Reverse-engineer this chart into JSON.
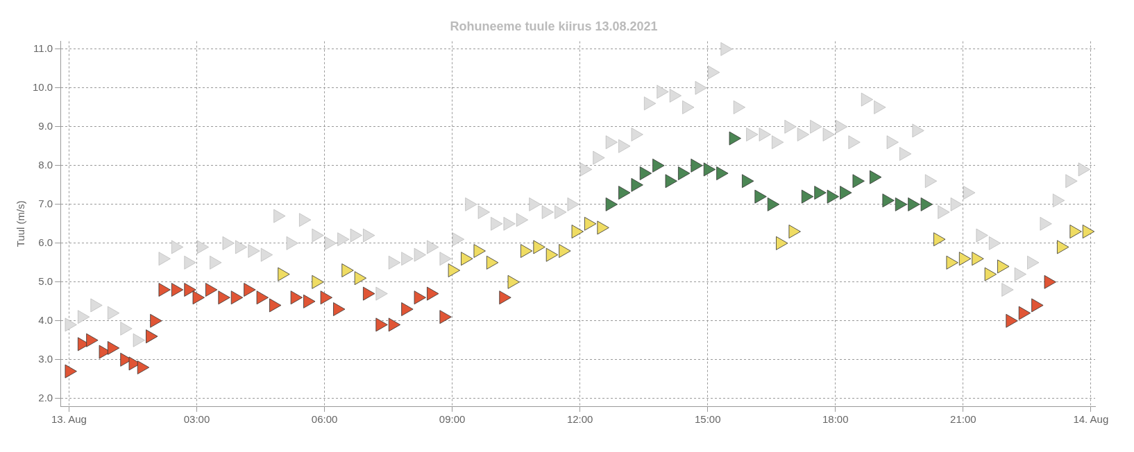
{
  "chart_data": {
    "type": "scatter",
    "title": "Rohuneeme tuule kiirus 13.08.2021",
    "ylabel": "Tuul (m/s)",
    "xlim": [
      -0.2,
      24.1
    ],
    "ylim": [
      1.8,
      11.2
    ],
    "xticks": [
      {
        "value": 0,
        "label": "13. Aug"
      },
      {
        "value": 3,
        "label": "03:00"
      },
      {
        "value": 6,
        "label": "06:00"
      },
      {
        "value": 9,
        "label": "09:00"
      },
      {
        "value": 12,
        "label": "12:00"
      },
      {
        "value": 15,
        "label": "15:00"
      },
      {
        "value": 18,
        "label": "18:00"
      },
      {
        "value": 21,
        "label": "21:00"
      },
      {
        "value": 24,
        "label": "14. Aug"
      }
    ],
    "yticks": [
      {
        "value": 2,
        "label": "2.0"
      },
      {
        "value": 3,
        "label": "3.0"
      },
      {
        "value": 4,
        "label": "4.0"
      },
      {
        "value": 5,
        "label": "5.0"
      },
      {
        "value": 6,
        "label": "6.0"
      },
      {
        "value": 7,
        "label": "7.0"
      },
      {
        "value": 8,
        "label": "8.0"
      },
      {
        "value": 9,
        "label": "9.0"
      },
      {
        "value": 10,
        "label": "10.0"
      },
      {
        "value": 11,
        "label": "11.0"
      }
    ],
    "grid": true,
    "marker": "triangle",
    "series": [
      {
        "color": "#dddddd",
        "x": [
          0.0,
          0.3,
          0.6,
          1.0,
          1.3,
          1.6,
          1.9,
          2.2,
          2.5,
          2.8,
          3.1,
          3.4,
          3.7,
          4.0,
          4.3,
          4.6,
          4.9,
          5.2,
          5.5,
          5.8,
          6.1,
          6.4,
          6.7,
          7.0,
          7.3,
          7.6,
          7.9,
          8.2,
          8.5,
          8.8,
          9.1,
          9.4,
          9.7,
          10.0,
          10.3,
          10.6,
          10.9,
          11.2,
          11.5,
          11.8,
          12.1,
          12.4,
          12.7,
          13.0,
          13.3,
          13.6,
          13.9,
          14.2,
          14.5,
          14.8,
          15.1,
          15.4,
          15.7,
          16.0,
          16.3,
          16.6,
          16.9,
          17.2,
          17.5,
          17.8,
          18.1,
          18.4,
          18.7,
          19.0,
          19.3,
          19.6,
          19.9,
          20.2,
          20.5,
          20.8,
          21.1,
          21.4,
          21.7,
          22.0,
          22.3,
          22.6,
          22.9,
          23.2,
          23.5,
          23.8
        ],
        "values": [
          3.9,
          4.1,
          4.4,
          4.2,
          3.8,
          3.5,
          3.6,
          5.6,
          5.9,
          5.5,
          5.9,
          5.5,
          6.0,
          5.9,
          5.8,
          5.7,
          6.7,
          6.0,
          6.6,
          6.2,
          6.0,
          6.1,
          6.2,
          6.2,
          4.7,
          5.5,
          5.6,
          5.7,
          5.9,
          5.6,
          6.1,
          7.0,
          6.8,
          6.5,
          6.5,
          6.6,
          7.0,
          6.8,
          6.8,
          7.0,
          7.9,
          8.2,
          8.6,
          8.5,
          8.8,
          9.6,
          9.9,
          9.8,
          9.5,
          10.0,
          10.4,
          11.0,
          9.5,
          8.8,
          8.8,
          8.6,
          9.0,
          8.8,
          9.0,
          8.8,
          9.0,
          8.6,
          9.7,
          9.5,
          8.6,
          8.3,
          8.9,
          7.6,
          6.8,
          7.0,
          7.3,
          6.2,
          6.0,
          4.8,
          5.2,
          5.5,
          6.5,
          7.1,
          7.6,
          7.9
        ]
      },
      {
        "x": [
          0.0,
          0.3,
          0.5,
          0.8,
          1.0,
          1.3,
          1.5,
          1.7,
          1.9,
          2.0,
          2.2,
          2.5,
          2.8,
          3.0,
          3.3,
          3.6,
          3.9,
          4.2,
          4.5,
          4.8,
          5.0,
          5.3,
          5.6,
          5.8,
          6.0,
          6.3,
          6.5,
          6.8,
          7.0,
          7.3,
          7.6,
          7.9,
          8.2,
          8.5,
          8.8,
          9.0,
          9.3,
          9.6,
          9.9,
          10.2,
          10.4,
          10.7,
          11.0,
          11.3,
          11.6,
          11.9,
          12.2,
          12.5,
          12.7,
          13.0,
          13.3,
          13.5,
          13.8,
          14.1,
          14.4,
          14.7,
          15.0,
          15.3,
          15.6,
          15.9,
          16.2,
          16.5,
          16.7,
          17.0,
          17.3,
          17.6,
          17.9,
          18.2,
          18.5,
          18.9,
          19.2,
          19.5,
          19.8,
          20.1,
          20.4,
          20.7,
          21.0,
          21.3,
          21.6,
          21.9,
          22.1,
          22.4,
          22.7,
          23.0,
          23.3,
          23.6,
          23.9
        ],
        "values": [
          2.7,
          3.4,
          3.5,
          3.2,
          3.3,
          3.0,
          2.9,
          2.8,
          3.6,
          4.0,
          4.8,
          4.8,
          4.8,
          4.6,
          4.8,
          4.6,
          4.6,
          4.8,
          4.6,
          4.4,
          5.2,
          4.6,
          4.5,
          5.0,
          4.6,
          4.3,
          5.3,
          5.1,
          4.7,
          3.9,
          3.9,
          4.3,
          4.6,
          4.7,
          4.1,
          5.3,
          5.6,
          5.8,
          5.5,
          4.6,
          5.0,
          5.8,
          5.9,
          5.7,
          5.8,
          6.3,
          6.5,
          6.4,
          7.0,
          7.3,
          7.5,
          7.8,
          8.0,
          7.6,
          7.8,
          8.0,
          7.9,
          7.8,
          8.7,
          7.6,
          7.2,
          7.0,
          6.0,
          6.3,
          7.2,
          7.3,
          7.2,
          7.3,
          7.6,
          7.7,
          7.1,
          7.0,
          7.0,
          7.0,
          6.1,
          5.5,
          5.6,
          5.6,
          5.2,
          5.4,
          4.0,
          4.2,
          4.4,
          5.0,
          5.9,
          6.3,
          6.3
        ],
        "colors": [
          "#e05535",
          "#e05535",
          "#e05535",
          "#e05535",
          "#e05535",
          "#e05535",
          "#e05535",
          "#e05535",
          "#e05535",
          "#e05535",
          "#e05535",
          "#e05535",
          "#e05535",
          "#e05535",
          "#e05535",
          "#e05535",
          "#e05535",
          "#e05535",
          "#e05535",
          "#e05535",
          "#efdc63",
          "#e05535",
          "#e05535",
          "#efdc63",
          "#e05535",
          "#e05535",
          "#efdc63",
          "#efdc63",
          "#e05535",
          "#e05535",
          "#e05535",
          "#e05535",
          "#e05535",
          "#e05535",
          "#e05535",
          "#efdc63",
          "#efdc63",
          "#efdc63",
          "#efdc63",
          "#e05535",
          "#efdc63",
          "#efdc63",
          "#efdc63",
          "#efdc63",
          "#efdc63",
          "#efdc63",
          "#efdc63",
          "#efdc63",
          "#4b8654",
          "#4b8654",
          "#4b8654",
          "#4b8654",
          "#4b8654",
          "#4b8654",
          "#4b8654",
          "#4b8654",
          "#4b8654",
          "#4b8654",
          "#4b8654",
          "#4b8654",
          "#4b8654",
          "#4b8654",
          "#efdc63",
          "#efdc63",
          "#4b8654",
          "#4b8654",
          "#4b8654",
          "#4b8654",
          "#4b8654",
          "#4b8654",
          "#4b8654",
          "#4b8654",
          "#4b8654",
          "#4b8654",
          "#efdc63",
          "#efdc63",
          "#efdc63",
          "#efdc63",
          "#efdc63",
          "#efdc63",
          "#e05535",
          "#e05535",
          "#e05535",
          "#e05535",
          "#efdc63",
          "#efdc63",
          "#efdc63"
        ]
      }
    ]
  }
}
